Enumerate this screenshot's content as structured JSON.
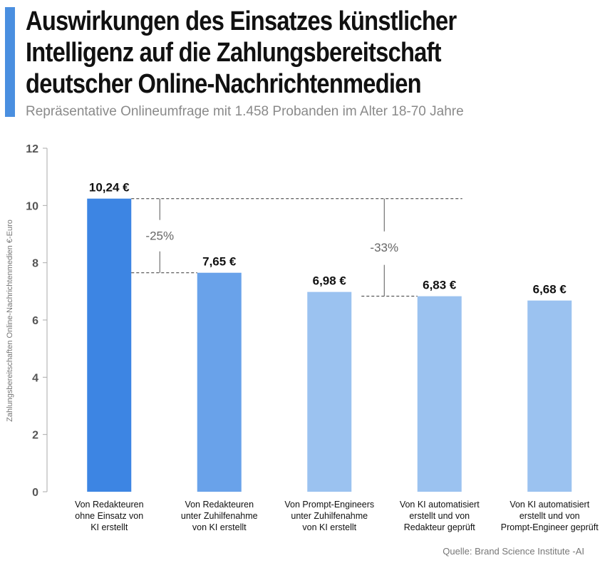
{
  "chart_data": {
    "type": "bar",
    "title": "Auswirkungen des Einsatzes künstlicher Intelligenz auf die Zahlungsbereitschaft deutscher Online-Nachrichtenmedien",
    "subtitle": "Repräsentative Onlineumfrage mit 1.458 Probanden im Alter 18-70 Jahre",
    "ylabel": "Zahlungsbereitschaften Online-Nachrichtenmedien €-Euro",
    "xlabel": "",
    "ylim": [
      0,
      12
    ],
    "yticks": [
      0,
      2,
      4,
      6,
      8,
      10,
      12
    ],
    "grid": false,
    "categories": [
      [
        "Von Redakteuren",
        "ohne Einsatz von",
        "KI erstellt"
      ],
      [
        "Von Redakteuren",
        "unter Zuhilfenahme",
        "von KI erstellt"
      ],
      [
        "Von Prompt-Engineers",
        "unter Zuhilfenahme",
        "von KI erstellt"
      ],
      [
        "Von KI automatisiert",
        "erstellt und von",
        "Redakteur geprüft"
      ],
      [
        "Von KI automatisiert",
        "erstellt und von",
        "Prompt-Engineer geprüft"
      ]
    ],
    "values": [
      10.24,
      7.65,
      6.98,
      6.83,
      6.68
    ],
    "value_labels": [
      "10,24 €",
      "7,65 €",
      "6,98 €",
      "6,83 €",
      "6,68 €"
    ],
    "bar_colors": [
      "#3d85e3",
      "#69a2ea",
      "#9bc2f0",
      "#9bc2f0",
      "#9bc2f0"
    ],
    "annotations": [
      {
        "label": "-25%",
        "from_bar": 0,
        "to_bar": 1,
        "from_value": 10.24,
        "to_value": 7.65
      },
      {
        "label": "-33%",
        "from_bar": 0,
        "to_bar": 3,
        "from_value": 10.24,
        "to_value": 6.83
      }
    ],
    "source": "Quelle: Brand Science Institute -AI"
  },
  "colors": {
    "accent": "#4a8fe0",
    "title": "#111111",
    "subtitle": "#8a8a8a",
    "axis": "#555555"
  }
}
